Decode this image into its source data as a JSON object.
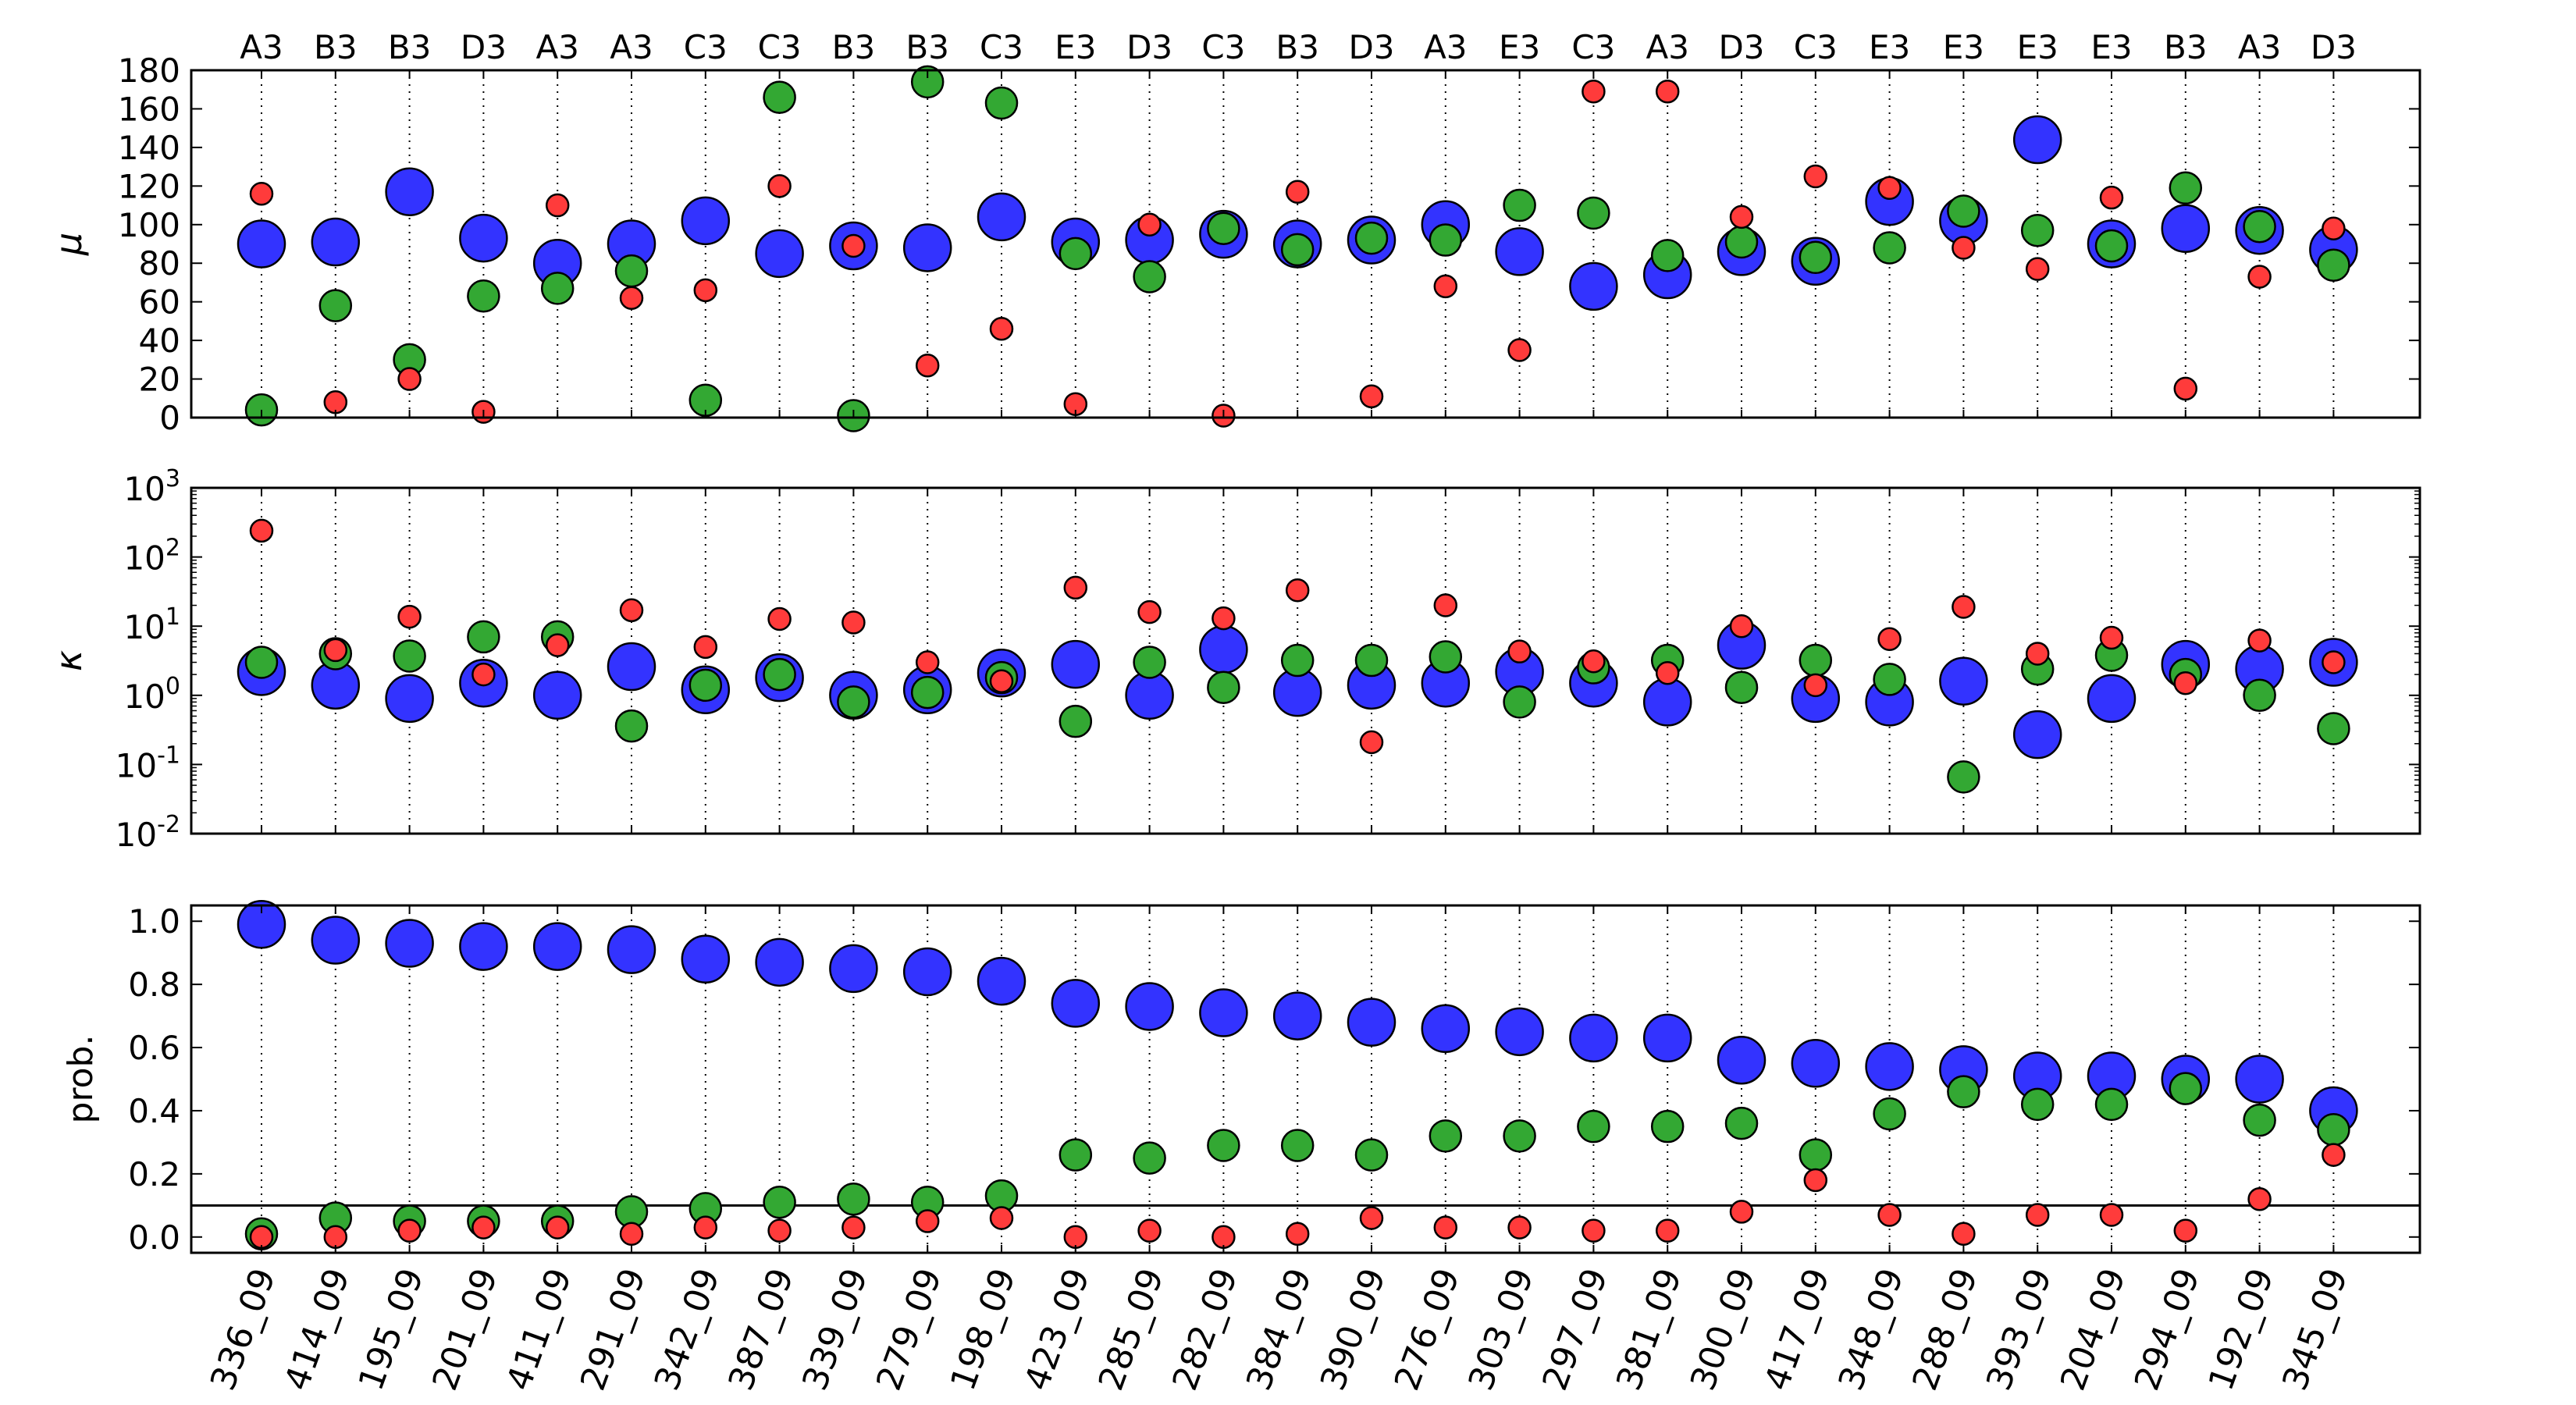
{
  "chart_data": [
    {
      "type": "scatter",
      "panel": "mu",
      "ylabel": "μ",
      "ylim": [
        0,
        180
      ],
      "yticks": [
        "0",
        "20",
        "40",
        "60",
        "80",
        "100",
        "120",
        "140",
        "160",
        "180"
      ],
      "grid": "vertical dotted lines at each category",
      "categories": [
        "336_09",
        "414_09",
        "195_09",
        "201_09",
        "411_09",
        "291_09",
        "342_09",
        "387_09",
        "339_09",
        "279_09",
        "198_09",
        "423_09",
        "285_09",
        "282_09",
        "384_09",
        "390_09",
        "276_09",
        "303_09",
        "297_09",
        "381_09",
        "300_09",
        "417_09",
        "348_09",
        "288_09",
        "393_09",
        "204_09",
        "294_09",
        "192_09",
        "345_09"
      ],
      "top_labels": [
        "A3",
        "B3",
        "B3",
        "D3",
        "A3",
        "A3",
        "C3",
        "C3",
        "B3",
        "B3",
        "C3",
        "E3",
        "D3",
        "C3",
        "B3",
        "D3",
        "A3",
        "E3",
        "C3",
        "A3",
        "D3",
        "C3",
        "E3",
        "E3",
        "E3",
        "E3",
        "B3",
        "A3",
        "D3"
      ],
      "series": [
        {
          "color": "blue",
          "values": [
            90,
            91,
            117,
            93,
            80,
            90,
            102,
            85,
            89,
            88,
            104,
            91,
            92,
            95,
            90,
            92,
            100,
            86,
            68,
            74,
            86,
            81,
            112,
            102,
            144,
            90,
            98,
            97,
            87
          ]
        },
        {
          "color": "green",
          "values": [
            4,
            58,
            30,
            63,
            67,
            76,
            9,
            166,
            1,
            174,
            163,
            85,
            73,
            98,
            87,
            93,
            92,
            110,
            106,
            84,
            91,
            83,
            88,
            107,
            97,
            89,
            119,
            99,
            79
          ]
        },
        {
          "color": "red",
          "values": [
            116,
            8,
            20,
            3,
            110,
            62,
            66,
            120,
            89,
            27,
            46,
            7,
            100,
            1,
            117,
            11,
            68,
            35,
            169,
            169,
            104,
            125,
            119,
            88,
            77,
            114,
            15,
            73,
            98
          ]
        }
      ]
    },
    {
      "type": "scatter",
      "panel": "kappa",
      "ylabel": "κ",
      "yscale": "log",
      "ylim": [
        0.01,
        1000
      ],
      "ytick_bases": [
        "10",
        "10",
        "10",
        "10",
        "10",
        "10"
      ],
      "ytick_exponents": [
        "-2",
        "-1",
        "0",
        "1",
        "2",
        "3"
      ],
      "grid": "vertical dotted lines at each category",
      "series": [
        {
          "color": "blue",
          "values": [
            2.2,
            1.4,
            0.9,
            1.5,
            1.0,
            2.6,
            1.2,
            1.8,
            1.0,
            1.2,
            2.1,
            2.8,
            1.0,
            4.6,
            1.1,
            1.4,
            1.5,
            2.2,
            1.5,
            0.8,
            5.3,
            0.9,
            0.8,
            1.6,
            0.27,
            0.9,
            2.8,
            2.4,
            3.0
          ]
        },
        {
          "color": "green",
          "values": [
            3.0,
            4.0,
            3.7,
            7.0,
            7.0,
            0.36,
            1.4,
            2.0,
            0.8,
            1.1,
            1.8,
            0.42,
            3.0,
            1.3,
            3.2,
            3.2,
            3.6,
            0.8,
            2.5,
            3.2,
            1.3,
            3.2,
            1.7,
            0.066,
            2.4,
            3.8,
            2.0,
            1.0,
            0.33
          ]
        },
        {
          "color": "red",
          "values": [
            240,
            4.5,
            13.7,
            2.0,
            5.3,
            17,
            5.0,
            12.7,
            11.3,
            3.0,
            1.6,
            36,
            16,
            13,
            33,
            0.21,
            20,
            4.3,
            3.1,
            2.1,
            10,
            1.4,
            6.5,
            19,
            4.0,
            6.8,
            1.5,
            6.2,
            3.0
          ]
        }
      ]
    },
    {
      "type": "scatter",
      "panel": "prob",
      "ylabel": "prob.",
      "ylim": [
        -0.05,
        1.05
      ],
      "yticks": [
        "0.0",
        "0.2",
        "0.4",
        "0.6",
        "0.8",
        "1.0"
      ],
      "reference_line": 0.1,
      "grid": "vertical dotted lines at each category",
      "series": [
        {
          "color": "blue",
          "values": [
            0.99,
            0.94,
            0.93,
            0.92,
            0.92,
            0.91,
            0.88,
            0.87,
            0.85,
            0.84,
            0.81,
            0.74,
            0.73,
            0.71,
            0.7,
            0.68,
            0.66,
            0.65,
            0.63,
            0.63,
            0.56,
            0.55,
            0.54,
            0.53,
            0.51,
            0.51,
            0.5,
            0.5,
            0.4
          ]
        },
        {
          "color": "green",
          "values": [
            0.01,
            0.06,
            0.05,
            0.05,
            0.05,
            0.08,
            0.09,
            0.11,
            0.12,
            0.11,
            0.13,
            0.26,
            0.25,
            0.29,
            0.29,
            0.26,
            0.32,
            0.32,
            0.35,
            0.35,
            0.36,
            0.26,
            0.39,
            0.46,
            0.42,
            0.42,
            0.47,
            0.37,
            0.34
          ]
        },
        {
          "color": "red",
          "values": [
            0.0,
            0.0,
            0.02,
            0.03,
            0.03,
            0.01,
            0.03,
            0.02,
            0.03,
            0.05,
            0.06,
            0.0,
            0.02,
            0.0,
            0.01,
            0.06,
            0.03,
            0.03,
            0.02,
            0.02,
            0.08,
            0.18,
            0.07,
            0.01,
            0.07,
            0.07,
            0.02,
            0.12,
            0.26
          ]
        }
      ]
    }
  ],
  "colors": {
    "blue": "#3333ff",
    "green": "#33a833",
    "red": "#ff3b3b",
    "stroke": "#000000"
  }
}
